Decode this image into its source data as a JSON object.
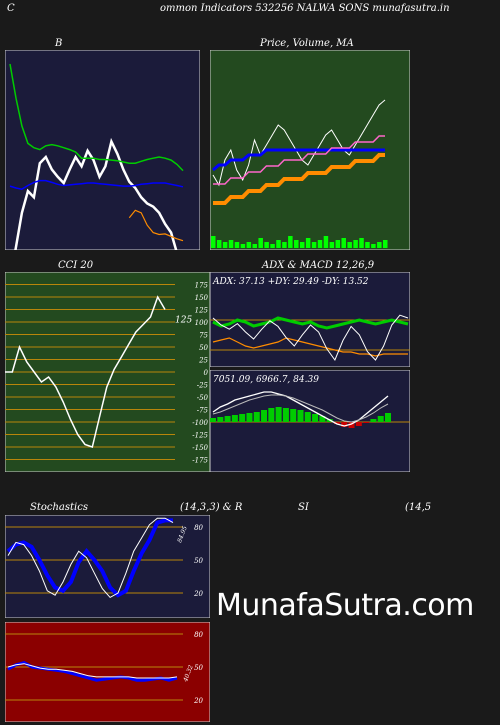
{
  "header": {
    "left": "C",
    "title": "ommon  Indicators 532256  NALWA SONS munafasutra.in"
  },
  "watermark": "MunafaSutra.com",
  "colors": {
    "page": "#1a1a1a",
    "panel_dark": "#1b1b3a",
    "panel_green": "#234a1f",
    "panel_red": "#8b0000",
    "grid_orange": "#b8860b",
    "white": "#ffffff",
    "blue": "#0000ff",
    "green": "#00cc00",
    "orange": "#ff8c00"
  },
  "chart_data": [
    {
      "type": "line",
      "panel": "bollinger",
      "title": "B",
      "series": [
        {
          "color": "#ffffff",
          "values": [
            -48,
            5,
            60,
            95,
            85,
            140,
            150,
            130,
            118,
            108,
            130,
            150,
            135,
            160,
            145,
            118,
            135,
            175,
            155,
            130,
            110,
            100,
            85,
            75,
            70,
            60,
            42,
            28,
            -5,
            -22
          ]
        },
        {
          "color": "#00cc00",
          "values": [
            300,
            245,
            200,
            172,
            165,
            162,
            168,
            170,
            168,
            165,
            162,
            158,
            148,
            148,
            148,
            146,
            146,
            145,
            144,
            142,
            140,
            140,
            143,
            146,
            148,
            150,
            148,
            145,
            138,
            128
          ]
        },
        {
          "color": "#0000ff",
          "values": [
            103,
            100,
            98,
            104,
            109,
            112,
            112,
            109,
            106,
            104,
            105,
            106,
            107,
            108,
            108,
            107,
            106,
            105,
            104,
            103,
            103,
            104,
            106,
            107,
            108,
            108,
            108,
            106,
            104,
            102
          ]
        },
        {
          "color": "#ff8c00",
          "values": [
            null,
            null,
            null,
            null,
            null,
            null,
            null,
            null,
            null,
            null,
            null,
            null,
            null,
            null,
            null,
            null,
            null,
            null,
            null,
            null,
            null,
            null,
            null,
            null,
            null,
            null,
            null,
            null,
            null,
            null
          ]
        }
      ]
    },
    {
      "type": "line",
      "panel": "price_ma",
      "title": "Price,  Volume, MA",
      "volume_label": "Volume",
      "series": [
        {
          "name": "Price",
          "color": "#ffffff",
          "values": [
            5,
            3,
            8,
            10,
            6,
            4,
            7,
            12,
            9,
            11,
            13,
            15,
            14,
            12,
            10,
            8,
            7,
            9,
            11,
            13,
            14,
            12,
            10,
            9,
            11,
            13,
            15,
            17,
            19,
            20
          ]
        },
        {
          "color": "#0000ff",
          "values": [
            5,
            6,
            6,
            7,
            7,
            7,
            8,
            8,
            8,
            9,
            9,
            9,
            9,
            9,
            9,
            9,
            9,
            9,
            9,
            9,
            9,
            9,
            9,
            9,
            9,
            9,
            9,
            9,
            9,
            9
          ]
        },
        {
          "color": "#ff8c00",
          "values": [
            1,
            1,
            1,
            2,
            2,
            2,
            3,
            3,
            3,
            4,
            4,
            4,
            5,
            5,
            5,
            5,
            6,
            6,
            6,
            6,
            7,
            7,
            7,
            7,
            8,
            8,
            8,
            8,
            9,
            9
          ]
        }
      ],
      "volume": [
        6,
        4,
        3,
        4,
        3,
        2,
        3,
        2,
        5,
        3,
        2,
        4,
        3,
        6,
        4,
        3,
        5,
        3,
        4,
        6,
        3,
        4,
        5,
        3,
        4,
        5,
        3,
        2,
        3,
        4
      ]
    },
    {
      "type": "line",
      "panel": "cci",
      "title": "CCI 20",
      "last_value_label": "125",
      "y_ticks": [
        "175",
        "150",
        "125",
        "100",
        "75",
        "50",
        "25",
        "0",
        "-25",
        "-50",
        "-75",
        "-100",
        "-125",
        "-150",
        "-175"
      ],
      "ylim": [
        -175,
        175
      ],
      "series": [
        {
          "color": "#ffffff",
          "values": [
            0,
            0,
            50,
            20,
            0,
            -20,
            -10,
            -30,
            -60,
            -95,
            -125,
            -145,
            -150,
            -90,
            -30,
            5,
            30,
            55,
            80,
            95,
            110,
            150,
            125
          ]
        }
      ]
    },
    {
      "type": "line",
      "panel": "adx",
      "title": "ADX  & MACD 12,26,9",
      "label": "ADX: 37.13  +DY: 29.49 -DY: 13.52",
      "series": [
        {
          "name": "+DY",
          "color": "#00cc00",
          "values": [
            30,
            28,
            29,
            31,
            30,
            28,
            29,
            30,
            32,
            31,
            30,
            29,
            30,
            28,
            27,
            28,
            29,
            30,
            31,
            30,
            29,
            30,
            31,
            30,
            29
          ]
        },
        {
          "name": "-DY",
          "color": "#ff8c00",
          "values": [
            20,
            21,
            22,
            20,
            18,
            17,
            18,
            19,
            20,
            22,
            21,
            20,
            19,
            18,
            17,
            16,
            15,
            15,
            14,
            14,
            13,
            14,
            14,
            14,
            14
          ]
        }
      ]
    },
    {
      "type": "bar",
      "panel": "macd",
      "label": "7051.09,  6966.7,  84.39",
      "values": [
        4,
        5,
        6,
        7,
        8,
        9,
        10,
        12,
        14,
        15,
        14,
        13,
        12,
        10,
        8,
        6,
        3,
        -2,
        -5,
        -6,
        -4,
        -1,
        3,
        6,
        9
      ]
    },
    {
      "type": "line",
      "panel": "stochastics",
      "title": "Stochastics",
      "params": "(14,3,3) & R",
      "last_value_label": "84.95",
      "y_ticks": [
        "80",
        "50",
        "20"
      ],
      "ylim": [
        0,
        100
      ],
      "series": [
        {
          "color": "#0000ff",
          "values": [
            58,
            64,
            66,
            62,
            50,
            36,
            25,
            22,
            30,
            48,
            58,
            50,
            40,
            25,
            18,
            22,
            40,
            56,
            68,
            84,
            86,
            86
          ]
        },
        {
          "color": "#ffffff",
          "values": [
            54,
            66,
            64,
            54,
            40,
            22,
            18,
            30,
            46,
            58,
            52,
            38,
            24,
            16,
            20,
            38,
            58,
            70,
            82,
            88,
            88,
            84
          ]
        }
      ]
    },
    {
      "type": "line",
      "panel": "rsi",
      "title": "SI",
      "params": "(14,5",
      "last_value_label": "40.32",
      "y_ticks": [
        "80",
        "50",
        "20"
      ],
      "ylim": [
        0,
        100
      ],
      "series": [
        {
          "color": "#0000ff",
          "values": [
            48,
            52,
            54,
            50,
            49,
            48,
            47,
            46,
            44,
            42,
            40,
            38,
            39,
            40,
            41,
            40,
            38,
            38,
            39,
            40,
            38,
            40
          ]
        },
        {
          "color": "#ffffff",
          "values": [
            50,
            52,
            53,
            51,
            49,
            48,
            48,
            47,
            46,
            44,
            42,
            41,
            41,
            41,
            41,
            41,
            40,
            40,
            40,
            40,
            40,
            41
          ]
        }
      ]
    }
  ]
}
